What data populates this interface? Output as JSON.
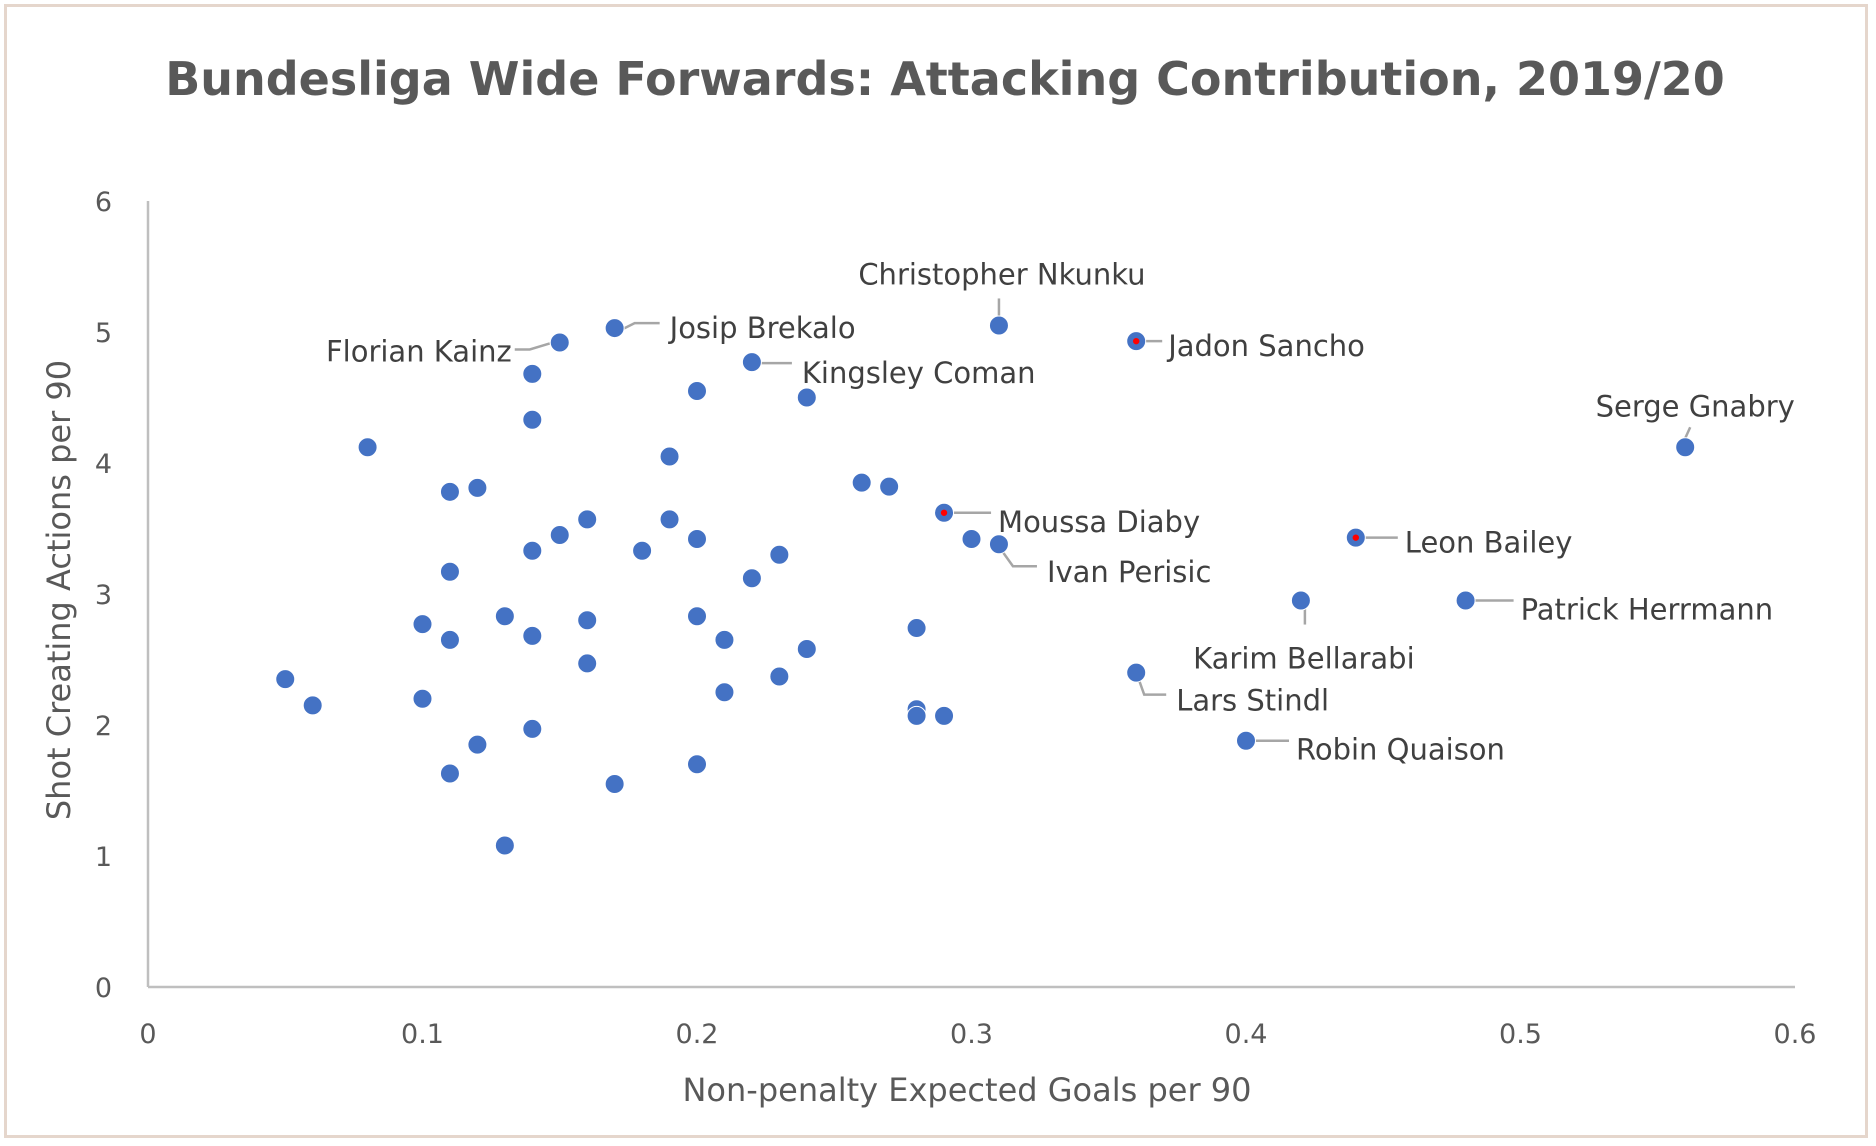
{
  "chart_data": {
    "type": "scatter",
    "title": "Bundesliga Wide Forwards: Attacking Contribution, 2019/20",
    "xlabel": "Non-penalty  Expected Goals per 90",
    "ylabel": "Shot Creating Actions per 90",
    "xlim": [
      0,
      0.6
    ],
    "ylim": [
      0,
      6
    ],
    "x_ticks": [
      "0",
      "0.1",
      "0.2",
      "0.3",
      "0.4",
      "0.5",
      "0.6"
    ],
    "y_ticks": [
      "0",
      "1",
      "2",
      "3",
      "4",
      "5",
      "6"
    ],
    "grid": false,
    "marker_color": "#4472c4",
    "highlight_color": "#ff0000",
    "points": [
      {
        "x": 0.05,
        "y": 2.35
      },
      {
        "x": 0.06,
        "y": 2.15
      },
      {
        "x": 0.08,
        "y": 4.12
      },
      {
        "x": 0.1,
        "y": 2.77
      },
      {
        "x": 0.1,
        "y": 2.2
      },
      {
        "x": 0.11,
        "y": 3.78
      },
      {
        "x": 0.11,
        "y": 3.17
      },
      {
        "x": 0.11,
        "y": 2.65
      },
      {
        "x": 0.11,
        "y": 1.63
      },
      {
        "x": 0.12,
        "y": 3.81
      },
      {
        "x": 0.12,
        "y": 1.85
      },
      {
        "x": 0.13,
        "y": 2.83
      },
      {
        "x": 0.13,
        "y": 1.08
      },
      {
        "x": 0.14,
        "y": 4.68
      },
      {
        "x": 0.14,
        "y": 4.33
      },
      {
        "x": 0.14,
        "y": 3.33
      },
      {
        "x": 0.14,
        "y": 2.68
      },
      {
        "x": 0.14,
        "y": 1.97
      },
      {
        "x": 0.15,
        "y": 4.92,
        "label": "Florian Kainz"
      },
      {
        "x": 0.15,
        "y": 3.45
      },
      {
        "x": 0.16,
        "y": 3.57
      },
      {
        "x": 0.16,
        "y": 2.8
      },
      {
        "x": 0.16,
        "y": 2.47
      },
      {
        "x": 0.17,
        "y": 5.03,
        "label": "Josip Brekalo"
      },
      {
        "x": 0.17,
        "y": 1.55
      },
      {
        "x": 0.18,
        "y": 3.33
      },
      {
        "x": 0.19,
        "y": 4.05
      },
      {
        "x": 0.19,
        "y": 3.57
      },
      {
        "x": 0.2,
        "y": 4.55
      },
      {
        "x": 0.2,
        "y": 3.42
      },
      {
        "x": 0.2,
        "y": 2.83
      },
      {
        "x": 0.2,
        "y": 1.7
      },
      {
        "x": 0.21,
        "y": 2.65
      },
      {
        "x": 0.21,
        "y": 2.25
      },
      {
        "x": 0.22,
        "y": 4.77,
        "label": "Kingsley Coman"
      },
      {
        "x": 0.22,
        "y": 3.12
      },
      {
        "x": 0.23,
        "y": 3.3
      },
      {
        "x": 0.23,
        "y": 2.37
      },
      {
        "x": 0.24,
        "y": 4.5
      },
      {
        "x": 0.24,
        "y": 2.58
      },
      {
        "x": 0.26,
        "y": 3.85
      },
      {
        "x": 0.27,
        "y": 3.82
      },
      {
        "x": 0.28,
        "y": 2.74
      },
      {
        "x": 0.28,
        "y": 2.12
      },
      {
        "x": 0.28,
        "y": 2.07
      },
      {
        "x": 0.29,
        "y": 3.62,
        "label": "Moussa Diaby",
        "highlight": true
      },
      {
        "x": 0.29,
        "y": 2.07
      },
      {
        "x": 0.3,
        "y": 3.42
      },
      {
        "x": 0.31,
        "y": 5.05,
        "label": "Christopher Nkunku"
      },
      {
        "x": 0.31,
        "y": 3.38,
        "label": "Ivan Perisic"
      },
      {
        "x": 0.36,
        "y": 4.93,
        "label": "Jadon Sancho",
        "highlight": true
      },
      {
        "x": 0.36,
        "y": 2.4,
        "label": "Lars Stindl"
      },
      {
        "x": 0.4,
        "y": 1.88,
        "label": "Robin Quaison"
      },
      {
        "x": 0.42,
        "y": 2.95,
        "label": "Karim Bellarabi"
      },
      {
        "x": 0.44,
        "y": 3.43,
        "label": "Leon Bailey",
        "highlight": true
      },
      {
        "x": 0.48,
        "y": 2.95,
        "label": "Patrick Herrmann"
      },
      {
        "x": 0.56,
        "y": 4.12,
        "label": "Serge  Gnabry"
      }
    ]
  }
}
